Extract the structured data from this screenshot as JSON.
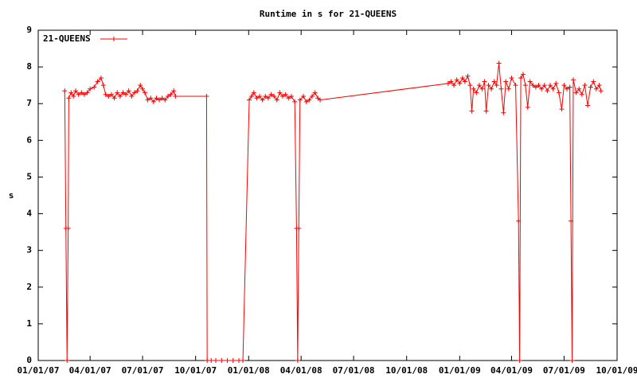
{
  "chart_data": {
    "type": "line",
    "title": "Runtime in s for 21-QUEENS",
    "y_label": "s",
    "xlim": [
      "01/01/07",
      "10/01/09"
    ],
    "xticks": [
      "01/01/07",
      "04/01/07",
      "07/01/07",
      "10/01/07",
      "01/01/08",
      "04/01/08",
      "07/01/08",
      "10/01/08",
      "01/01/09",
      "04/01/09",
      "07/01/09",
      "10/01/09"
    ],
    "ylim": [
      0,
      9
    ],
    "yticks": [
      0,
      1,
      2,
      3,
      4,
      5,
      6,
      7,
      8,
      9
    ],
    "legend": "top-left",
    "x": [
      "02/16/07",
      "02/18/07",
      "02/20/07",
      "02/22/07",
      "02/23/07",
      "02/27/07",
      "03/03/07",
      "03/07/07",
      "03/12/07",
      "03/17/07",
      "03/22/07",
      "03/27/07",
      "04/01/07",
      "04/08/07",
      "04/14/07",
      "04/20/07",
      "04/24/07",
      "04/28/07",
      "05/03/07",
      "05/08/07",
      "05/13/07",
      "05/18/07",
      "05/23/07",
      "05/28/07",
      "06/02/07",
      "06/07/07",
      "06/12/07",
      "06/17/07",
      "06/22/07",
      "06/27/07",
      "07/01/07",
      "07/05/07",
      "07/10/07",
      "07/15/07",
      "07/20/07",
      "07/25/07",
      "07/30/07",
      "08/04/07",
      "08/09/07",
      "08/14/07",
      "08/19/07",
      "08/24/07",
      "08/27/07",
      "10/20/07",
      "10/21/07",
      "10/28/07",
      "11/05/07",
      "11/15/07",
      "11/25/07",
      "12/05/07",
      "12/15/07",
      "12/22/07",
      "01/02/08",
      "01/06/08",
      "01/10/08",
      "01/15/08",
      "01/20/08",
      "01/25/08",
      "01/30/08",
      "02/04/08",
      "02/09/08",
      "02/14/08",
      "02/19/08",
      "02/24/08",
      "02/29/08",
      "03/05/08",
      "03/10/08",
      "03/15/08",
      "03/21/08",
      "03/24/08",
      "03/26/08",
      "03/28/08",
      "03/30/08",
      "04/05/08",
      "04/10/08",
      "04/15/08",
      "04/20/08",
      "04/25/08",
      "04/30/08",
      "05/04/08",
      "12/12/08",
      "12/17/08",
      "12/22/08",
      "12/27/08",
      "01/01/09",
      "01/06/09",
      "01/10/09",
      "01/15/09",
      "01/19/09",
      "01/22/09",
      "01/25/09",
      "01/30/09",
      "02/04/09",
      "02/09/09",
      "02/13/09",
      "02/16/09",
      "02/20/09",
      "02/25/09",
      "03/02/09",
      "03/06/09",
      "03/10/09",
      "03/14/09",
      "03/18/09",
      "03/22/09",
      "03/27/09",
      "04/01/09",
      "04/08/09",
      "04/13/09",
      "04/15/09",
      "04/17/09",
      "04/21/09",
      "04/25/09",
      "04/29/09",
      "05/03/09",
      "05/08/09",
      "05/13/09",
      "05/18/09",
      "05/23/09",
      "05/28/09",
      "06/02/09",
      "06/07/09",
      "06/12/09",
      "06/17/09",
      "06/22/09",
      "06/27/09",
      "07/01/09",
      "07/06/09",
      "07/11/09",
      "07/13/09",
      "07/15/09",
      "07/17/09",
      "07/22/09",
      "07/27/09",
      "08/01/09",
      "08/06/09",
      "08/11/09",
      "08/16/09",
      "08/21/09",
      "08/26/09",
      "08/31/09",
      "09/03/09"
    ],
    "series": [
      {
        "name": "21-QUEENS",
        "color": "#ff0000",
        "values": [
          7.35,
          3.6,
          0,
          3.6,
          7.15,
          7.3,
          7.2,
          7.35,
          7.25,
          7.3,
          7.25,
          7.3,
          7.4,
          7.45,
          7.6,
          7.7,
          7.5,
          7.25,
          7.2,
          7.25,
          7.15,
          7.3,
          7.2,
          7.3,
          7.25,
          7.35,
          7.2,
          7.3,
          7.35,
          7.5,
          7.4,
          7.3,
          7.1,
          7.15,
          7.05,
          7.15,
          7.1,
          7.15,
          7.1,
          7.2,
          7.25,
          7.35,
          7.2,
          7.2,
          0,
          0,
          0,
          0,
          0,
          0,
          0,
          0,
          7.1,
          7.2,
          7.3,
          7.15,
          7.2,
          7.1,
          7.2,
          7.15,
          7.25,
          7.2,
          7.1,
          7.3,
          7.2,
          7.25,
          7.15,
          7.2,
          7.05,
          3.6,
          0,
          3.6,
          7.1,
          7.2,
          7.05,
          7.1,
          7.2,
          7.3,
          7.15,
          7.1,
          7.55,
          7.6,
          7.5,
          7.65,
          7.55,
          7.7,
          7.6,
          7.75,
          7.5,
          6.8,
          7.4,
          7.3,
          7.5,
          7.4,
          7.6,
          6.8,
          7.5,
          7.4,
          7.6,
          7.5,
          8.1,
          7.4,
          6.75,
          7.6,
          7.4,
          7.7,
          7.5,
          3.8,
          0,
          7.7,
          7.8,
          7.5,
          6.9,
          7.6,
          7.5,
          7.45,
          7.5,
          7.4,
          7.5,
          7.35,
          7.5,
          7.4,
          7.55,
          7.3,
          6.85,
          7.5,
          7.4,
          7.45,
          3.8,
          0,
          7.65,
          7.3,
          7.4,
          7.25,
          7.5,
          6.95,
          7.45,
          7.6,
          7.4,
          7.5,
          7.35
        ]
      }
    ]
  }
}
